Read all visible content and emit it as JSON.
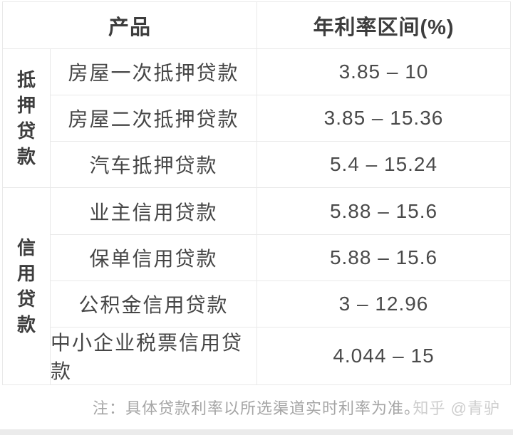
{
  "table": {
    "header": {
      "product": "产品",
      "rate": "年利率区间(%)"
    },
    "groups": [
      {
        "category": "抵押贷款",
        "row_span": 3
      },
      {
        "category": "信用贷款",
        "row_span": 4
      }
    ],
    "rows": [
      {
        "category": "抵押贷款",
        "product": "房屋一次抵押贷款",
        "rate": "3.85 – 10"
      },
      {
        "category": "抵押贷款",
        "product": "房屋二次抵押贷款",
        "rate": "3.85 – 15.36"
      },
      {
        "category": "抵押贷款",
        "product": "汽车抵押贷款",
        "rate": "5.4 – 15.24"
      },
      {
        "category": "信用贷款",
        "product": "业主信用贷款",
        "rate": "5.88 – 15.6"
      },
      {
        "category": "信用贷款",
        "product": "保单信用贷款",
        "rate": "5.88 – 15.6"
      },
      {
        "category": "信用贷款",
        "product": "公积金信用贷款",
        "rate": "3 – 12.96"
      },
      {
        "category": "信用贷款",
        "product": "中小企业税票信用贷款",
        "rate": "4.044 – 15"
      }
    ]
  },
  "footer": {
    "note": "注：具体贷款利率以所选渠道实时利率为准。",
    "watermark": "知乎 @青驴"
  },
  "colors": {
    "background": "#ffffff",
    "border": "#e9e9e9",
    "header_text": "#3d3d3d",
    "body_text": "#464646",
    "note_text": "#a5a5a5",
    "watermark_text": "#cecece",
    "bottom_strip": "#ebebeb"
  },
  "chart_data": {
    "type": "table",
    "title": "",
    "columns": [
      "",
      "产品",
      "年利率区间(%)"
    ],
    "rows": [
      [
        "抵押贷款",
        "房屋一次抵押贷款",
        "3.85 – 10"
      ],
      [
        "抵押贷款",
        "房屋二次抵押贷款",
        "3.85 – 15.36"
      ],
      [
        "抵押贷款",
        "汽车抵押贷款",
        "5.4 – 15.24"
      ],
      [
        "信用贷款",
        "业主信用贷款",
        "5.88 – 15.6"
      ],
      [
        "信用贷款",
        "保单信用贷款",
        "5.88 – 15.6"
      ],
      [
        "信用贷款",
        "公积金信用贷款",
        "3 – 12.96"
      ],
      [
        "信用贷款",
        "中小企业税票信用贷款",
        "4.044 – 15"
      ]
    ],
    "rate_min_values": [
      3.85,
      3.85,
      5.4,
      5.88,
      5.88,
      3,
      4.044
    ],
    "rate_max_values": [
      10,
      15.36,
      15.24,
      15.6,
      15.6,
      12.96,
      15
    ],
    "note": "注：具体贷款利率以所选渠道实时利率为准。"
  }
}
